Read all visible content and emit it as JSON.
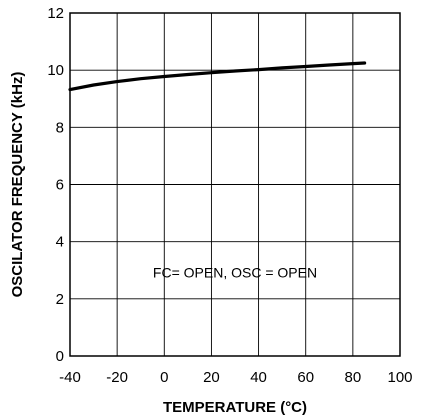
{
  "chart_data": {
    "type": "line",
    "title": "",
    "xlabel": "TEMPERATURE (°C)",
    "ylabel": "OSCILATOR FREQUENCY (kHz)",
    "xlim": [
      -40,
      100
    ],
    "ylim": [
      0,
      12
    ],
    "xticks": [
      -40,
      -20,
      0,
      20,
      40,
      60,
      80,
      100
    ],
    "yticks": [
      0,
      2,
      4,
      6,
      8,
      10,
      12
    ],
    "grid": true,
    "legend": "none",
    "annotation": "FC= OPEN, OSC = OPEN",
    "series": [
      {
        "color": "#000000",
        "x": [
          -40,
          -30,
          -20,
          -10,
          0,
          10,
          20,
          30,
          40,
          50,
          60,
          70,
          80,
          85
        ],
        "y": [
          9.32,
          9.48,
          9.6,
          9.7,
          9.78,
          9.85,
          9.91,
          9.97,
          10.02,
          10.08,
          10.13,
          10.18,
          10.23,
          10.25
        ]
      }
    ]
  }
}
